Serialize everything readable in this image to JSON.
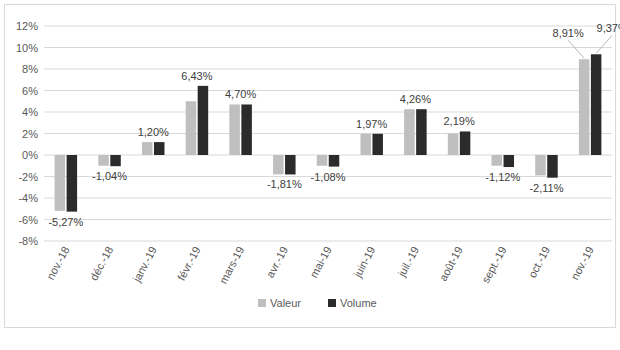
{
  "chart_data": {
    "type": "bar",
    "categories": [
      "nov.-18",
      "déc.-18",
      "janv.-19",
      "févr.-19",
      "mars-19",
      "avr.-19",
      "mai-19",
      "juin-19",
      "juil.-19",
      "août-19",
      "sept.-19",
      "oct.-19",
      "nov.-19"
    ],
    "series": [
      {
        "name": "Valeur",
        "color": "#bfbfbf",
        "values": [
          -5.2,
          -1.0,
          1.2,
          5.0,
          4.7,
          -1.8,
          -1.0,
          1.97,
          4.26,
          2.0,
          -1.0,
          -1.9,
          8.91
        ],
        "value_labels": [
          null,
          null,
          null,
          null,
          null,
          null,
          null,
          null,
          null,
          null,
          null,
          null,
          "8,91%"
        ]
      },
      {
        "name": "Volume",
        "color": "#2b2b2b",
        "values": [
          -5.27,
          -1.04,
          1.2,
          6.43,
          4.7,
          -1.81,
          -1.08,
          1.97,
          4.26,
          2.19,
          -1.12,
          -2.11,
          9.37
        ],
        "value_labels": [
          "-5,27%",
          "-1,04%",
          "1,20%",
          "6,43%",
          "4,70%",
          "-1,81%",
          "-1,08%",
          "1,97%",
          "4,26%",
          "2,19%",
          "-1,12%",
          "-2,11%",
          "9,37%"
        ]
      }
    ],
    "ylim": [
      -8,
      12
    ],
    "yticks": [
      {
        "value": -8,
        "label": "-8%"
      },
      {
        "value": -6,
        "label": "-6%"
      },
      {
        "value": -4,
        "label": "-4%"
      },
      {
        "value": -2,
        "label": "-2%"
      },
      {
        "value": 0,
        "label": "0%"
      },
      {
        "value": 2,
        "label": "2%"
      },
      {
        "value": 4,
        "label": "4%"
      },
      {
        "value": 6,
        "label": "6%"
      },
      {
        "value": 8,
        "label": "8%"
      },
      {
        "value": 10,
        "label": "10%"
      },
      {
        "value": 12,
        "label": "12%"
      }
    ],
    "grid": true,
    "data_labels": true,
    "legend": "bottom"
  }
}
